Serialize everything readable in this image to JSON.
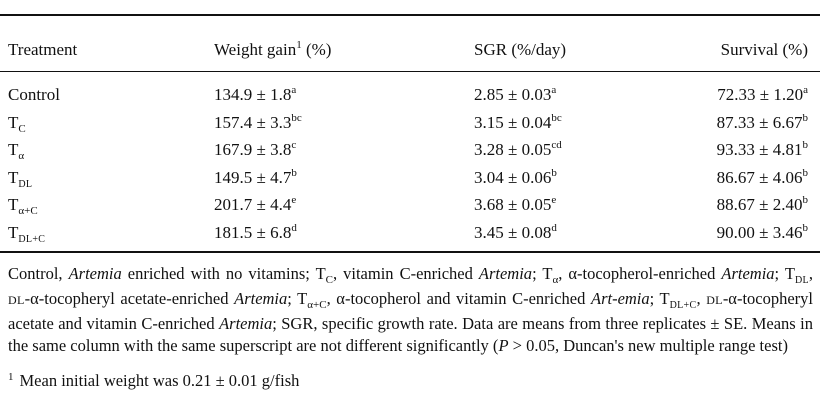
{
  "headers": {
    "treatment": "Treatment",
    "weight_gain": "Weight gain",
    "weight_gain_mark": "1",
    "weight_gain_unit": "(%)",
    "sgr": "SGR (%/day)",
    "survival": "Survival (%)"
  },
  "rows": [
    {
      "t_main": "Control",
      "t_sub": "",
      "t_sub_style": "none",
      "wg": "134.9 ± 1.8",
      "wg_sup": "a",
      "sgr": "2.85 ± 0.03",
      "sgr_sup": "a",
      "surv": "72.33 ± 1.20",
      "surv_sup": "a"
    },
    {
      "t_main": "T",
      "t_sub": "C",
      "t_sub_style": "plain",
      "wg": "157.4 ± 3.3",
      "wg_sup": "bc",
      "sgr": "3.15 ± 0.04",
      "sgr_sup": "bc",
      "surv": "87.33 ± 6.67",
      "surv_sup": "b"
    },
    {
      "t_main": "T",
      "t_sub": "α",
      "t_sub_style": "plain",
      "wg": "167.9 ± 3.8",
      "wg_sup": "c",
      "sgr": "3.28 ± 0.05",
      "sgr_sup": "cd",
      "surv": "93.33 ± 4.81",
      "surv_sup": "b"
    },
    {
      "t_main": "T",
      "t_sub": "DL",
      "t_sub_style": "smallcaps",
      "wg": "149.5 ± 4.7",
      "wg_sup": "b",
      "sgr": "3.04 ± 0.06",
      "sgr_sup": "b",
      "surv": "86.67 ± 4.06",
      "surv_sup": "b"
    },
    {
      "t_main": "T",
      "t_sub": "α+C",
      "t_sub_style": "plain",
      "wg": "201.7 ± 4.4",
      "wg_sup": "e",
      "sgr": "3.68 ± 0.05",
      "sgr_sup": "e",
      "surv": "88.67 ± 2.40",
      "surv_sup": "b"
    },
    {
      "t_main": "T",
      "t_sub": "DL+C",
      "t_sub_style": "smallcaps",
      "wg": "181.5 ± 6.8",
      "wg_sup": "d",
      "sgr": "3.45 ± 0.08",
      "sgr_sup": "d",
      "surv": "90.00 ± 3.46",
      "surv_sup": "b"
    }
  ],
  "notes": [
    {
      "t": "Control, "
    },
    {
      "t": "Artemia",
      "i": true
    },
    {
      "t": " enriched with no vitamins; T"
    },
    {
      "t": "C",
      "sub": true
    },
    {
      "t": ", vitamin C-enriched "
    },
    {
      "t": "Artemia",
      "i": true
    },
    {
      "t": "; T"
    },
    {
      "t": "α",
      "sub": true
    },
    {
      "t": ", α-tocopherol-enriched "
    },
    {
      "t": "Artemia",
      "i": true
    },
    {
      "t": "; T"
    },
    {
      "t": "DL",
      "sub": true,
      "sc": true
    },
    {
      "t": ", "
    },
    {
      "t": "DL",
      "sc": true
    },
    {
      "t": "-α-tocopheryl acetate-enriched "
    },
    {
      "t": "Artemia",
      "i": true
    },
    {
      "t": "; T"
    },
    {
      "t": "α+C",
      "sub": true
    },
    {
      "t": ", α-tocopherol and vitamin C-enriched "
    },
    {
      "t": "Art-emia",
      "i": true
    },
    {
      "t": "; T"
    },
    {
      "t": "DL+C",
      "sub": true,
      "sc": true
    },
    {
      "t": ", "
    },
    {
      "t": "DL",
      "sc": true
    },
    {
      "t": "-α-tocopheryl acetate and vitamin C-enriched "
    },
    {
      "t": "Artemia",
      "i": true
    },
    {
      "t": "; SGR, specific growth rate. Data are means from three replicates ± SE. Means in the same column with the same superscript are not different significantly ("
    },
    {
      "t": "P",
      "i": true
    },
    {
      "t": " > 0.05, Duncan's new multiple range test)"
    }
  ],
  "footnote": {
    "mark": "1",
    "text": "Mean initial weight was 0.21 ± 0.01 g/fish"
  }
}
